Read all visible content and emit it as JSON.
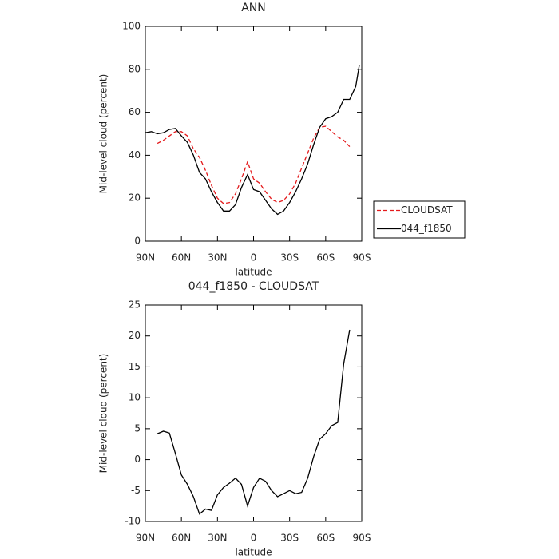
{
  "chart_data": [
    {
      "type": "line",
      "title": "ANN",
      "xlabel": "latitude",
      "ylabel": "Mid-level cloud (percent)",
      "x": [
        90,
        85,
        80,
        75,
        70,
        65,
        60,
        55,
        50,
        45,
        40,
        35,
        30,
        25,
        20,
        15,
        10,
        5,
        0,
        -5,
        -10,
        -15,
        -20,
        -25,
        -30,
        -35,
        -40,
        -45,
        -50,
        -55,
        -60,
        -65,
        -70,
        -75,
        -80,
        -85,
        -88
      ],
      "series": [
        {
          "name": "CLOUDSAT",
          "color": "#e41a1c",
          "dash": true,
          "values": [
            null,
            null,
            45.5,
            47,
            49,
            51,
            51,
            49,
            43,
            39,
            33,
            26,
            20,
            17.5,
            18,
            22,
            29,
            37,
            29,
            27,
            23,
            19.5,
            18,
            19,
            22,
            27,
            34,
            41,
            48,
            53,
            53.5,
            51,
            48.5,
            47,
            44,
            null,
            null
          ]
        },
        {
          "name": "044_f1850",
          "color": "#000000",
          "dash": false,
          "values": [
            50.5,
            51,
            50,
            50.5,
            52,
            52.5,
            49,
            46,
            40,
            32,
            29,
            23,
            18,
            14,
            14,
            17,
            25,
            31,
            24,
            23,
            19,
            15,
            12.5,
            14,
            18,
            23,
            29,
            36,
            45,
            53,
            57,
            58,
            60,
            66,
            66,
            72,
            82
          ]
        }
      ],
      "xlim": [
        90,
        -90
      ],
      "xticks": [
        {
          "value": 90,
          "label": "90N"
        },
        {
          "value": 60,
          "label": "60N"
        },
        {
          "value": 30,
          "label": "30N"
        },
        0,
        {
          "value": -30,
          "label": "30S"
        },
        {
          "value": -60,
          "label": "60S"
        },
        {
          "value": -90,
          "label": "90S"
        }
      ],
      "ylim": [
        0,
        100
      ],
      "yticks": [
        0,
        20,
        40,
        60,
        80,
        100
      ],
      "legend": "right"
    },
    {
      "type": "line",
      "title": "044_f1850 - CLOUDSAT",
      "xlabel": "latitude",
      "ylabel": "Mid-level cloud (percent)",
      "x": [
        80,
        75,
        70,
        65,
        60,
        55,
        50,
        45,
        40,
        35,
        30,
        25,
        20,
        15,
        10,
        5,
        0,
        -5,
        -10,
        -15,
        -20,
        -25,
        -30,
        -35,
        -40,
        -45,
        -50,
        -55,
        -60,
        -65,
        -70,
        -75,
        -80
      ],
      "color": "#000000",
      "values": [
        4.2,
        4.6,
        4.3,
        1,
        -2.5,
        -4,
        -6,
        -8.8,
        -8,
        -8.2,
        -5.7,
        -4.5,
        -3.8,
        -3,
        -4,
        -7.5,
        -4.5,
        -3,
        -3.5,
        -5,
        -6,
        -5.5,
        -5,
        -5.5,
        -5.3,
        -3,
        0.5,
        3.3,
        4.2,
        5.5,
        6,
        15.5,
        21
      ],
      "xlim": [
        90,
        -90
      ],
      "xticks": [
        {
          "value": 90,
          "label": "90N"
        },
        {
          "value": 60,
          "label": "60N"
        },
        {
          "value": 30,
          "label": "30N"
        },
        0,
        {
          "value": -30,
          "label": "30S"
        },
        {
          "value": -60,
          "label": "60S"
        },
        {
          "value": -90,
          "label": "90S"
        }
      ],
      "ylim": [
        -10,
        25
      ],
      "yticks": [
        -10,
        -5,
        0,
        5,
        10,
        15,
        20,
        25
      ]
    }
  ]
}
